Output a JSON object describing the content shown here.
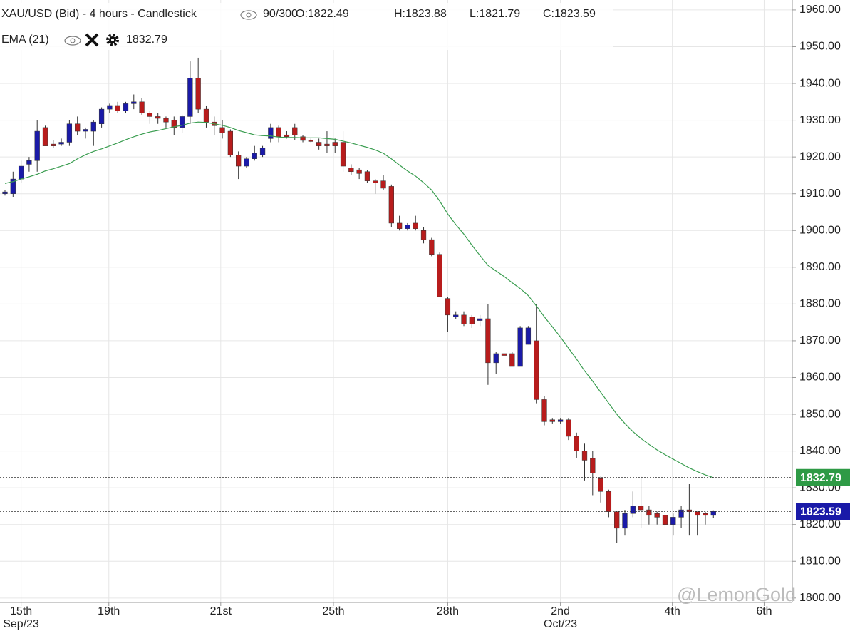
{
  "chart_data": {
    "type": "candlestick",
    "title": "XAU/USD (Bid) - 4 hours - Candlestick",
    "counter": "90/300",
    "ohlc_labels": [
      "O:1822.49",
      "H:1823.88",
      "L:1821.79",
      "C:1823.59"
    ],
    "open": [
      1910,
      1910,
      1914,
      1918,
      1919,
      1928,
      1923.5,
      1923.5,
      1924,
      1929,
      1927,
      1927,
      1929,
      1933,
      1934,
      1932.5,
      1934.5,
      1935,
      1932,
      1931,
      1930.5,
      1930,
      1928,
      1931,
      1941.5,
      1933,
      1929.5,
      1928,
      1927,
      1920.5,
      1917.5,
      1919.5,
      1920.5,
      1925,
      1928,
      1926,
      1928,
      1925.5,
      1924.5,
      1924,
      1923.5,
      1924,
      1924,
      1917,
      1916.5,
      1916,
      1913.5,
      1913.5,
      1912,
      1902,
      1900.5,
      1902,
      1900,
      1897.5,
      1893.5,
      1881.5,
      1876.5,
      1877,
      1876.5,
      1875.5,
      1876,
      1864,
      1866.5,
      1866.5,
      1863,
      1869,
      1870,
      1854,
      1848.5,
      1848,
      1848.5,
      1844,
      1840,
      1838,
      1832.5,
      1829,
      1823.5,
      1819,
      1823,
      1825,
      1824,
      1823,
      1822.5,
      1820,
      1822,
      1824,
      1823.5,
      1823,
      1822.49
    ],
    "high": [
      1911,
      1916,
      1919,
      1920,
      1930,
      1928.5,
      1924.5,
      1925,
      1930,
      1931,
      1928,
      1930,
      1933.5,
      1934.5,
      1935,
      1935,
      1937,
      1936,
      1932.5,
      1932,
      1931,
      1931,
      1931.5,
      1946,
      1947,
      1934,
      1931,
      1930,
      1927.5,
      1921.5,
      1920,
      1923,
      1923,
      1929,
      1928.5,
      1927,
      1929,
      1926,
      1925,
      1925,
      1927,
      1925,
      1927,
      1918,
      1917,
      1916.5,
      1914,
      1915,
      1912.5,
      1904,
      1902,
      1904,
      1901,
      1898,
      1894,
      1882,
      1878,
      1878,
      1877,
      1877,
      1880,
      1867,
      1867,
      1867,
      1874,
      1874,
      1880,
      1855,
      1849,
      1849,
      1849,
      1845,
      1842,
      1840,
      1833,
      1829.5,
      1823.5,
      1824,
      1829,
      1833,
      1825,
      1823.5,
      1823,
      1823,
      1825,
      1831,
      1823.5,
      1823.5,
      1823.88
    ],
    "low": [
      1909.5,
      1909,
      1913,
      1916,
      1916,
      1923,
      1922.5,
      1923,
      1923,
      1926,
      1925,
      1923,
      1928,
      1932,
      1932,
      1932,
      1933,
      1931.5,
      1929,
      1929,
      1928,
      1926,
      1926.5,
      1929,
      1932,
      1928,
      1926,
      1925,
      1920,
      1914,
      1917,
      1919,
      1920,
      1924,
      1924,
      1925,
      1924.5,
      1924,
      1924,
      1922,
      1921,
      1921,
      1916,
      1915,
      1914,
      1913,
      1910,
      1911,
      1901,
      1900,
      1900,
      1900,
      1896.5,
      1893,
      1882,
      1872.5,
      1876,
      1874,
      1873.5,
      1874,
      1858,
      1861,
      1865.5,
      1863,
      1863,
      1869,
      1853,
      1847,
      1847.5,
      1847.5,
      1843,
      1838,
      1832,
      1828,
      1826,
      1822,
      1815,
      1817,
      1822,
      1819,
      1820,
      1820,
      1819,
      1817,
      1819,
      1817,
      1817,
      1820,
      1821.79
    ],
    "close": [
      1910.5,
      1914,
      1917.5,
      1919,
      1927,
      1923,
      1923,
      1924,
      1929,
      1927,
      1927.5,
      1929.5,
      1933,
      1934,
      1932.5,
      1934.5,
      1935,
      1932,
      1931,
      1930.5,
      1929.5,
      1928,
      1931,
      1941.5,
      1933,
      1929.5,
      1928.5,
      1926.5,
      1920.5,
      1917.5,
      1919.5,
      1921,
      1922.5,
      1928,
      1925.5,
      1925.5,
      1926,
      1924.5,
      1924.3,
      1923,
      1923,
      1923,
      1917.5,
      1916,
      1915.5,
      1913.5,
      1913,
      1911.5,
      1902,
      1900.5,
      1901.5,
      1900.5,
      1897.5,
      1893.5,
      1882,
      1877,
      1877,
      1874.5,
      1874.5,
      1876,
      1864,
      1866.5,
      1866,
      1863,
      1873.5,
      1873.5,
      1854,
      1848,
      1848,
      1848.5,
      1844,
      1840,
      1837.5,
      1834,
      1829,
      1823.5,
      1819,
      1823,
      1825,
      1824,
      1822.5,
      1822,
      1820,
      1822,
      1824,
      1823.5,
      1822.5,
      1822.5,
      1823.59
    ],
    "up_color": "#1a1aa8",
    "down_color": "#b81c1c",
    "ema": {
      "name": "EMA (21)",
      "color": "#3a9d50",
      "values": [
        1912.8,
        1913.3,
        1914.0,
        1914.6,
        1915.3,
        1916.2,
        1916.8,
        1917.5,
        1918.2,
        1919.5,
        1920.6,
        1921.5,
        1922.2,
        1923.0,
        1923.8,
        1924.7,
        1925.5,
        1926.2,
        1926.8,
        1927.2,
        1927.7,
        1928.2,
        1928.6,
        1929.2,
        1929.5,
        1929.4,
        1929.0,
        1928.6,
        1928.0,
        1927.2,
        1926.6,
        1926.0,
        1925.8,
        1925.7,
        1925.4,
        1925.3,
        1925.3,
        1925.2,
        1925.2,
        1925.2,
        1925.0,
        1924.8,
        1924.3,
        1923.8,
        1923.2,
        1922.6,
        1921.9,
        1921.0,
        1919.5,
        1917.8,
        1916.2,
        1914.8,
        1913.0,
        1911.0,
        1908.0,
        1904.5,
        1901.6,
        1899.0,
        1896.0,
        1893.2,
        1890.5,
        1889.0,
        1887.5,
        1885.8,
        1884.2,
        1882.3,
        1879.5,
        1876.5,
        1873.8,
        1871.0,
        1868.0,
        1865.0,
        1861.8,
        1859.0,
        1856.0,
        1853.0,
        1850.0,
        1847.5,
        1845.3,
        1843.4,
        1841.8,
        1840.3,
        1839.0,
        1837.8,
        1836.6,
        1835.4,
        1834.4,
        1833.5,
        1832.79
      ]
    },
    "price_lines": [
      {
        "value": 1832.79,
        "color": "#2e9a45"
      },
      {
        "value": 1823.59,
        "color": "#1a1aa8"
      }
    ],
    "xlim": [
      -0.62,
      97.8
    ],
    "xticks": [
      {
        "value": 2,
        "label": "15th"
      },
      {
        "value": 12.9,
        "label": "19th"
      },
      {
        "value": 26.8,
        "label": "21st"
      },
      {
        "value": 40.8,
        "label": "25th"
      },
      {
        "value": 55,
        "label": "28th"
      },
      {
        "value": 69,
        "label": "2nd"
      },
      {
        "value": 82.9,
        "label": "4th"
      },
      {
        "value": 94.3,
        "label": "6th"
      }
    ],
    "xtick_sublabels": [
      {
        "value": 2,
        "label": "Sep/23"
      },
      {
        "value": 69,
        "label": "Oct/23"
      }
    ],
    "ylim": [
      1798.8,
      1962.7
    ],
    "yticks": [
      {
        "value": 1800,
        "label": "1800.00"
      },
      {
        "value": 1810,
        "label": "1810.00"
      },
      {
        "value": 1820,
        "label": "1820.00"
      },
      {
        "value": 1830,
        "label": "1830.00"
      },
      {
        "value": 1840,
        "label": "1840.00"
      },
      {
        "value": 1850,
        "label": "1850.00"
      },
      {
        "value": 1860,
        "label": "1860.00"
      },
      {
        "value": 1870,
        "label": "1870.00"
      },
      {
        "value": 1880,
        "label": "1880.00"
      },
      {
        "value": 1890,
        "label": "1890.00"
      },
      {
        "value": 1900,
        "label": "1900.00"
      },
      {
        "value": 1910,
        "label": "1910.00"
      },
      {
        "value": 1920,
        "label": "1920.00"
      },
      {
        "value": 1930,
        "label": "1930.00"
      },
      {
        "value": 1940,
        "label": "1940.00"
      },
      {
        "value": 1950,
        "label": "1950.00"
      },
      {
        "value": 1960,
        "label": "1960.00"
      }
    ],
    "grid": true,
    "watermark": "@LemonGold"
  }
}
